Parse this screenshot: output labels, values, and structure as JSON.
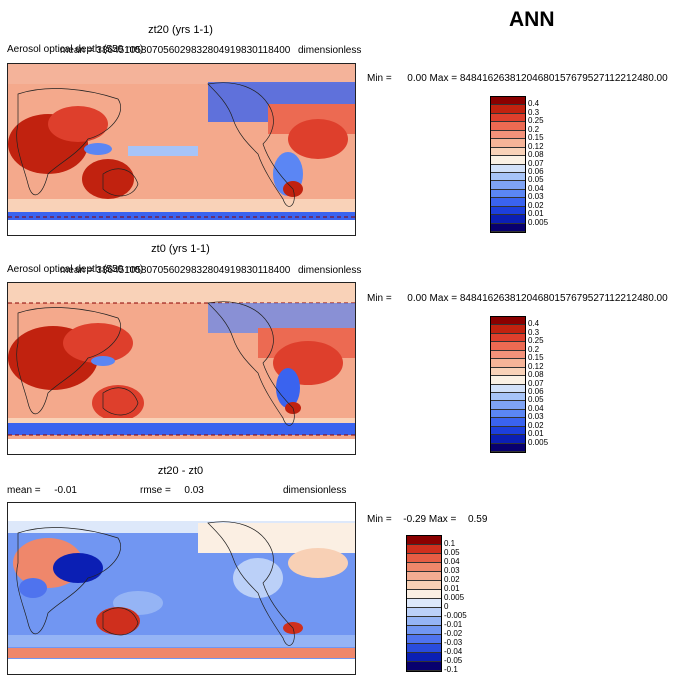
{
  "season": "ANN",
  "colors": {
    "abs_scale": [
      "#08006e",
      "#0b1fb4",
      "#1c3fdc",
      "#3a63ef",
      "#5b86f4",
      "#7fa4f6",
      "#a7c4f8",
      "#d2e1f9",
      "#fbf1e4",
      "#f9d2b8",
      "#f6b498",
      "#f3927a",
      "#ec6a52",
      "#de3f2c",
      "#c1220f",
      "#8a0000"
    ],
    "diff_scale": [
      "#08006e",
      "#0b1fb4",
      "#2a4cdc",
      "#4f73ee",
      "#7196f2",
      "#95b4f5",
      "#bbd0f8",
      "#dde8fa",
      "#fbefe3",
      "#f8d0b5",
      "#f4ad92",
      "#ef876b",
      "#e65d44",
      "#cf2f1d",
      "#8a0000"
    ]
  },
  "panels": [
    {
      "title": "zt20 (yrs 1-1)",
      "variable_label": "Aerosol optical depth (550 nm)",
      "mean_label": "mean =",
      "mean_value": "38645105807056029832804919830118400",
      "units": "dimensionless",
      "min_label": "Min =",
      "min_value": "0.00",
      "max_label": "Max =",
      "max_value": "84841626381204680157679527112212480.00",
      "colorbar_labels": [
        "0.4",
        "0.3",
        "0.25",
        "0.2",
        "0.15",
        "0.12",
        "0.08",
        "0.07",
        "0.06",
        "0.05",
        "0.04",
        "0.03",
        "0.02",
        "0.01",
        "0.005"
      ]
    },
    {
      "title": "zt0 (yrs 1-1)",
      "variable_label": "Aerosol optical depth (550 nm)",
      "mean_label": "mean =",
      "mean_value": "38645105807056029832804919830118400",
      "units": "dimensionless",
      "min_label": "Min =",
      "min_value": "0.00",
      "max_label": "Max =",
      "max_value": "84841626381204680157679527112212480.00",
      "colorbar_labels": [
        "0.4",
        "0.3",
        "0.25",
        "0.2",
        "0.15",
        "0.12",
        "0.08",
        "0.07",
        "0.06",
        "0.05",
        "0.04",
        "0.03",
        "0.02",
        "0.01",
        "0.005"
      ]
    },
    {
      "title": "zt20 - zt0",
      "mean_label": "mean =",
      "mean_value": "-0.01",
      "rmse_label": "rmse =",
      "rmse_value": "0.03",
      "units": "dimensionless",
      "min_label": "Min =",
      "min_value": "-0.29",
      "max_label": "Max =",
      "max_value": "0.59",
      "colorbar_labels": [
        "0.1",
        "0.05",
        "0.04",
        "0.03",
        "0.02",
        "0.01",
        "0.005",
        "0",
        "-0.005",
        "-0.01",
        "-0.02",
        "-0.03",
        "-0.04",
        "-0.05",
        "-0.1"
      ]
    }
  ]
}
